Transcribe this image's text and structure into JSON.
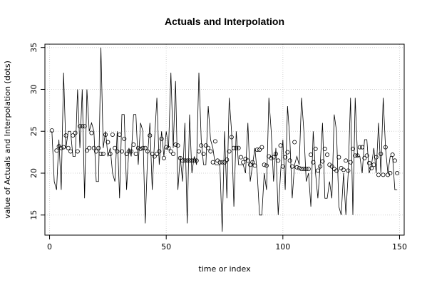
{
  "chart_data": {
    "type": "line",
    "title": "Actuals and Interpolation",
    "xlabel": "time or index",
    "ylabel": "value of Actuals and Interpolation (dots)",
    "xlim": [
      -2,
      152
    ],
    "ylim": [
      12.6,
      35.4
    ],
    "x_ticks": [
      0,
      50,
      100,
      150
    ],
    "y_ticks": [
      15,
      20,
      25,
      30,
      35
    ],
    "grid": true,
    "colors": {
      "line": "#000000",
      "points": "#000000",
      "grid": "#d3d3d3",
      "frame": "#000000"
    },
    "series": [
      {
        "kind": "line",
        "x": [
          1,
          2,
          3,
          4,
          5,
          6,
          7,
          8,
          9,
          10,
          11,
          12,
          13,
          14,
          15,
          16,
          17,
          18,
          19,
          20,
          21,
          22,
          23,
          24,
          25,
          26,
          27,
          28,
          29,
          30,
          31,
          32,
          33,
          34,
          35,
          36,
          37,
          38,
          39,
          40,
          41,
          42,
          43,
          44,
          45,
          46,
          47,
          48,
          49,
          50,
          51,
          52,
          53,
          54,
          55,
          56,
          57,
          58,
          59,
          60,
          61,
          62,
          63,
          64,
          65,
          66,
          67,
          68,
          69,
          70,
          71,
          72,
          73,
          74,
          75,
          76,
          77,
          78,
          79,
          80,
          81,
          82,
          83,
          84,
          85,
          86,
          87,
          88,
          89,
          90,
          91,
          92,
          93,
          94,
          95,
          96,
          97,
          98,
          99,
          100,
          101,
          102,
          103,
          104,
          105,
          106,
          107,
          108,
          109,
          110,
          111,
          112,
          113,
          114,
          115,
          116,
          117,
          118,
          119,
          120,
          121,
          122,
          123,
          124,
          125,
          126,
          127,
          128,
          129,
          130,
          131,
          132,
          133,
          134,
          135,
          136,
          137,
          138,
          139,
          140,
          141,
          142,
          143,
          144,
          145,
          146,
          147,
          148,
          149
        ],
        "y": [
          25,
          19,
          18,
          24,
          18,
          32,
          23,
          25,
          25,
          22,
          22,
          30,
          23,
          30,
          17,
          30,
          25,
          26,
          25,
          19,
          19,
          35,
          23,
          25,
          22,
          23,
          20,
          19,
          25,
          17,
          27,
          27,
          18,
          23,
          22,
          27,
          27,
          21,
          26,
          25,
          14,
          22,
          26,
          18,
          24,
          29,
          21,
          25,
          22,
          25,
          23,
          32,
          23,
          31,
          18,
          22,
          19,
          26,
          14,
          27,
          20,
          22,
          21,
          32,
          24,
          21,
          21,
          28,
          24,
          23,
          21,
          21,
          21,
          13,
          25,
          17,
          29,
          25,
          16,
          25,
          21,
          21,
          21,
          20,
          26,
          19,
          21,
          23,
          20,
          15,
          15,
          20,
          18,
          29,
          25,
          19,
          23,
          15,
          20,
          24,
          18,
          28,
          24,
          17,
          21,
          22,
          21,
          29,
          25,
          19,
          20,
          16,
          25,
          20,
          17,
          21,
          26,
          17,
          17,
          19,
          17,
          27,
          25,
          16,
          15,
          20,
          15,
          20,
          29,
          15,
          29,
          22,
          22,
          20,
          24,
          24,
          20,
          21,
          23,
          20,
          26,
          20,
          29,
          23,
          20,
          22,
          22,
          18,
          18
        ]
      },
      {
        "kind": "points",
        "x": [
          1,
          3,
          4,
          5,
          6,
          7,
          8,
          9,
          10,
          11,
          12,
          13,
          14,
          15,
          16,
          17,
          18,
          19,
          20,
          21,
          22,
          23,
          24,
          25,
          26,
          27,
          28,
          29,
          30,
          31,
          32,
          33,
          34,
          35,
          36,
          37,
          38,
          39,
          40,
          41,
          42,
          43,
          44,
          45,
          46,
          47,
          48,
          49,
          50,
          51,
          52,
          53,
          54,
          55,
          56,
          57,
          58,
          59,
          60,
          61,
          62,
          63,
          64,
          65,
          66,
          67,
          68,
          69,
          70,
          71,
          72,
          73,
          74,
          75,
          76,
          77,
          78,
          79,
          80,
          81,
          82,
          83,
          84,
          85,
          86,
          87,
          88,
          89,
          90,
          91,
          92,
          93,
          94,
          95,
          96,
          97,
          98,
          99,
          100,
          101,
          102,
          103,
          104,
          105,
          106,
          107,
          108,
          109,
          110,
          111,
          112,
          113,
          114,
          115,
          116,
          117,
          118,
          119,
          120,
          121,
          122,
          123,
          124,
          125,
          126,
          127,
          128,
          129,
          130,
          131,
          132,
          133,
          134,
          135,
          136,
          137,
          138,
          139,
          140,
          141,
          142,
          143,
          144,
          145,
          146,
          147,
          148,
          149
        ],
        "y": [
          25.1,
          22.7,
          23.2,
          23.0,
          23.1,
          24.5,
          23.0,
          22.6,
          24.5,
          24.8,
          22.6,
          25.6,
          25.6,
          25.6,
          22.7,
          23.0,
          24.8,
          23.0,
          22.6,
          23.0,
          22.3,
          22.3,
          24.6,
          23.7,
          22.3,
          24.6,
          23.0,
          22.6,
          24.6,
          22.6,
          24.1,
          22.3,
          22.6,
          22.6,
          23.4,
          22.3,
          23.0,
          22.9,
          23.0,
          23.0,
          22.6,
          24.5,
          22.3,
          22.0,
          22.3,
          22.6,
          24.1,
          21.8,
          23.1,
          23.0,
          22.6,
          22.3,
          23.4,
          23.3,
          21.8,
          21.5,
          21.5,
          21.5,
          21.5,
          21.5,
          21.5,
          21.5,
          22.6,
          23.3,
          22.3,
          23.3,
          23.0,
          22.6,
          21.3,
          23.8,
          21.5,
          21.3,
          21.3,
          21.3,
          21.6,
          22.6,
          24.3,
          23.0,
          23.0,
          23.0,
          21.9,
          21.3,
          21.7,
          21.5,
          21.0,
          21.3,
          20.9,
          22.8,
          22.8,
          23.1,
          21.0,
          20.9,
          22.0,
          21.8,
          21.9,
          22.3,
          21.5,
          23.3,
          20.8,
          21.9,
          22.5,
          21.5,
          20.8,
          23.7,
          20.7,
          20.6,
          20.5,
          20.5,
          20.5,
          20.5,
          22.2,
          21.3,
          22.9,
          20.3,
          20.8,
          21.4,
          22.9,
          22.2,
          21.0,
          20.8,
          20.5,
          20.3,
          21.9,
          20.6,
          20.4,
          21.5,
          20.3,
          21.3,
          22.9,
          22.1,
          22.1,
          23.1,
          23.1,
          21.8,
          22.1,
          21.2,
          20.6,
          21.0,
          21.9,
          19.8,
          22.3,
          19.8,
          23.1,
          19.8,
          20.0,
          22.2,
          21.5,
          20.0
        ]
      }
    ]
  }
}
